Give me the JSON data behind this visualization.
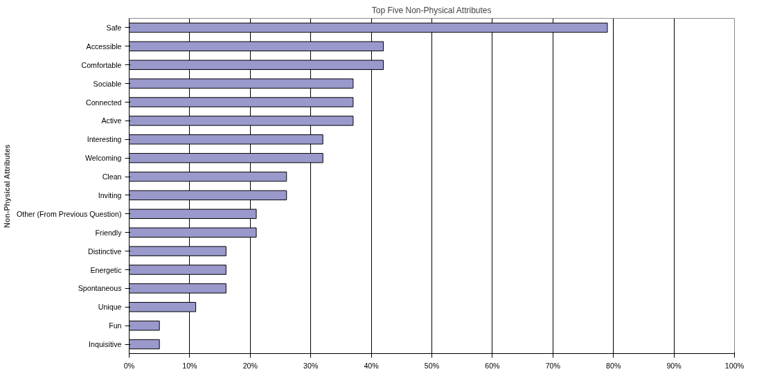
{
  "chart_data": {
    "type": "bar",
    "orientation": "horizontal",
    "title": "Top Five Non-Physical Attributes",
    "ylabel": "Non-Physical Attributes",
    "categories": [
      "Safe",
      "Accessible",
      "Comfortable",
      "Sociable",
      "Connected",
      "Active",
      "Interesting",
      "Welcoming",
      "Clean",
      "Inviting",
      "Other (From Previous Question)",
      "Friendly",
      "Distinctive",
      "Energetic",
      "Spontaneous",
      "Unique",
      "Fun",
      "Inquisitive"
    ],
    "values": [
      0.79,
      0.42,
      0.42,
      0.37,
      0.37,
      0.37,
      0.32,
      0.32,
      0.26,
      0.26,
      0.21,
      0.21,
      0.16,
      0.16,
      0.16,
      0.11,
      0.05,
      0.05
    ],
    "color": "#9999cc",
    "xlim": [
      0,
      1
    ],
    "xticks": [
      {
        "value": 0,
        "label": "0%"
      },
      {
        "value": 0.1,
        "label": "10%"
      },
      {
        "value": 0.2,
        "label": "20%"
      },
      {
        "value": 0.3,
        "label": "30%"
      },
      {
        "value": 0.4,
        "label": "40%"
      },
      {
        "value": 0.5,
        "label": "50%"
      },
      {
        "value": 0.6,
        "label": "60%"
      },
      {
        "value": 0.7,
        "label": "70%"
      },
      {
        "value": 0.8,
        "label": "80%"
      },
      {
        "value": 0.9,
        "label": "90%"
      },
      {
        "value": 1,
        "label": "100%"
      }
    ],
    "grid": "x"
  }
}
